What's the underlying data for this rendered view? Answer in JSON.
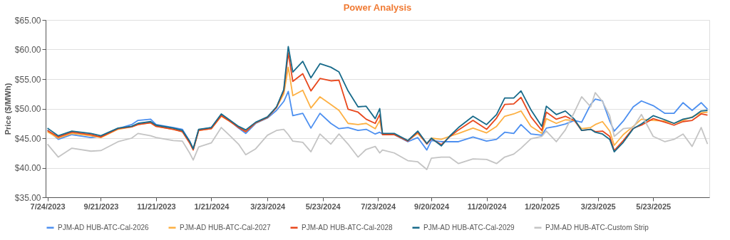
{
  "chart_data": {
    "type": "line",
    "title": "Power Analysis",
    "ylabel": "Price ($/MWh)",
    "x": [
      "2023-07-24",
      "2023-08-05",
      "2023-08-20",
      "2023-09-10",
      "2023-09-21",
      "2023-10-10",
      "2023-10-25",
      "2023-11-01",
      "2023-11-15",
      "2023-11-21",
      "2023-12-10",
      "2023-12-20",
      "2023-12-28",
      "2024-01-01",
      "2024-01-07",
      "2024-01-21",
      "2024-02-01",
      "2024-02-10",
      "2024-02-20",
      "2024-02-28",
      "2024-03-10",
      "2024-03-23",
      "2024-04-02",
      "2024-04-10",
      "2024-04-15",
      "2024-04-20",
      "2024-05-01",
      "2024-05-10",
      "2024-05-20",
      "2024-06-01",
      "2024-06-10",
      "2024-06-20",
      "2024-07-01",
      "2024-07-10",
      "2024-07-20",
      "2024-07-25",
      "2024-07-28",
      "2024-08-10",
      "2024-08-25",
      "2024-09-05",
      "2024-09-15",
      "2024-09-20",
      "2024-10-01",
      "2024-10-10",
      "2024-10-20",
      "2024-11-05",
      "2024-11-20",
      "2024-12-01",
      "2024-12-10",
      "2024-12-20",
      "2024-12-28",
      "2025-01-08",
      "2025-01-20",
      "2025-01-25",
      "2025-02-05",
      "2025-02-15",
      "2025-02-25",
      "2025-03-05",
      "2025-03-15",
      "2025-03-20",
      "2025-03-28",
      "2025-04-05",
      "2025-04-10",
      "2025-04-20",
      "2025-05-01",
      "2025-05-10",
      "2025-05-23",
      "2025-06-05",
      "2025-06-15",
      "2025-06-25",
      "2025-07-05",
      "2025-07-15",
      "2025-07-22"
    ],
    "series": [
      {
        "name": "PJM-AD HUB-ATC-Cal-2026",
        "color": "#4c8ff0",
        "values": [
          46.4,
          44.8,
          45.6,
          45.1,
          45.3,
          46.6,
          47.3,
          48.0,
          48.2,
          47.3,
          46.8,
          46.5,
          44.5,
          43.2,
          46.4,
          46.8,
          48.9,
          48.0,
          46.7,
          45.8,
          47.5,
          48.4,
          49.7,
          51.2,
          52.9,
          48.8,
          49.2,
          46.7,
          49.2,
          47.5,
          46.6,
          46.8,
          46.3,
          46.5,
          45.7,
          46.0,
          45.7,
          45.6,
          44.4,
          45.1,
          43.0,
          44.6,
          44.4,
          44.4,
          44.4,
          45.2,
          44.5,
          44.8,
          46.0,
          45.8,
          47.3,
          45.7,
          45.5,
          46.7,
          47.0,
          47.4,
          48.0,
          47.7,
          50.7,
          51.6,
          51.3,
          47.9,
          46.2,
          47.9,
          50.3,
          51.3,
          50.5,
          49.2,
          49.2,
          51.0,
          49.7,
          51.0,
          49.9
        ]
      },
      {
        "name": "PJM-AD HUB-ATC-Cal-2027",
        "color": "#fdb042",
        "values": [
          46.1,
          45.0,
          45.8,
          45.4,
          45.1,
          46.5,
          46.9,
          47.3,
          47.6,
          47.0,
          46.5,
          46.1,
          44.3,
          43.1,
          46.3,
          46.6,
          48.7,
          47.9,
          46.9,
          46.1,
          47.6,
          48.5,
          50.2,
          52.5,
          57.0,
          52.2,
          53.1,
          50.1,
          52.0,
          50.7,
          49.7,
          47.5,
          47.3,
          47.5,
          46.6,
          48.0,
          45.7,
          45.6,
          44.6,
          45.8,
          44.1,
          45.0,
          44.8,
          45.3,
          45.8,
          46.7,
          45.9,
          47.0,
          48.7,
          49.1,
          49.6,
          47.0,
          45.8,
          48.3,
          47.5,
          48.1,
          48.0,
          46.6,
          46.8,
          47.3,
          47.8,
          46.2,
          43.8,
          45.6,
          47.0,
          48.2,
          48.0,
          47.9,
          47.5,
          48.0,
          48.6,
          49.3,
          49.4
        ]
      },
      {
        "name": "PJM-AD HUB-ATC-Cal-2028",
        "color": "#e8471c",
        "values": [
          46.3,
          45.2,
          46.0,
          45.6,
          45.2,
          46.6,
          46.9,
          47.3,
          47.6,
          47.0,
          46.5,
          46.1,
          44.2,
          43.0,
          46.3,
          46.6,
          48.8,
          47.9,
          46.8,
          46.1,
          47.6,
          48.5,
          50.2,
          53.0,
          59.4,
          54.6,
          55.9,
          53.0,
          55.1,
          54.7,
          54.8,
          49.9,
          49.4,
          48.2,
          47.5,
          49.0,
          45.6,
          45.6,
          44.5,
          46.0,
          44.0,
          44.9,
          43.9,
          45.2,
          46.4,
          48.0,
          46.5,
          48.4,
          50.7,
          50.8,
          51.9,
          48.6,
          46.3,
          49.4,
          48.2,
          48.7,
          48.0,
          46.3,
          46.5,
          46.1,
          46.2,
          45.3,
          42.9,
          44.6,
          46.7,
          47.2,
          48.3,
          47.7,
          47.2,
          47.8,
          48.0,
          49.1,
          48.9
        ]
      },
      {
        "name": "PJM-AD HUB-ATC-Cal-2029",
        "color": "#176a8a",
        "values": [
          46.7,
          45.4,
          46.2,
          45.8,
          45.4,
          46.7,
          47.0,
          47.5,
          47.8,
          47.2,
          46.7,
          46.3,
          44.5,
          43.2,
          46.5,
          46.8,
          49.1,
          48.1,
          47.0,
          46.4,
          47.7,
          48.6,
          50.3,
          53.2,
          60.5,
          56.2,
          58.0,
          55.2,
          57.6,
          57.0,
          56.2,
          53.0,
          50.3,
          50.4,
          48.3,
          50.0,
          45.8,
          45.8,
          44.6,
          46.2,
          44.1,
          45.0,
          43.7,
          45.3,
          46.8,
          48.7,
          47.3,
          49.0,
          51.8,
          51.8,
          53.0,
          49.8,
          47.0,
          50.4,
          49.0,
          49.6,
          48.2,
          46.3,
          46.5,
          46.0,
          45.7,
          44.8,
          42.7,
          44.3,
          46.6,
          47.4,
          48.8,
          48.1,
          47.5,
          48.2,
          48.5,
          49.6,
          49.7
        ]
      },
      {
        "name": "PJM-AD HUB-ATC-Custom Strip",
        "color": "#c4c4c4",
        "values": [
          44.0,
          41.8,
          43.3,
          42.8,
          42.9,
          44.4,
          45.0,
          45.8,
          45.4,
          45.1,
          44.6,
          44.5,
          42.5,
          41.3,
          43.5,
          44.2,
          46.8,
          45.5,
          44.0,
          42.2,
          43.2,
          45.5,
          46.3,
          46.5,
          45.6,
          44.5,
          44.3,
          42.7,
          45.7,
          44.0,
          45.7,
          44.0,
          41.8,
          43.1,
          43.6,
          42.5,
          43.0,
          42.5,
          41.2,
          41.0,
          39.7,
          41.6,
          41.8,
          41.8,
          40.7,
          41.5,
          41.4,
          40.7,
          41.8,
          42.3,
          43.3,
          44.9,
          45.3,
          46.2,
          44.4,
          46.4,
          49.4,
          52.0,
          50.3,
          52.7,
          51.2,
          48.8,
          45.3,
          46.6,
          46.8,
          49.0,
          45.3,
          44.4,
          44.8,
          45.7,
          43.6,
          46.8,
          44.0
        ]
      }
    ],
    "xlim": [
      "2023-07-22",
      "2025-07-24"
    ],
    "xticks": [
      {
        "value": "2023-07-24",
        "label": "7/24/2023"
      },
      {
        "value": "2023-09-21",
        "label": "9/21/2023"
      },
      {
        "value": "2023-11-21",
        "label": "11/21/2023"
      },
      {
        "value": "2024-01-21",
        "label": "1/21/2024"
      },
      {
        "value": "2024-03-23",
        "label": "3/23/2024"
      },
      {
        "value": "2024-05-23",
        "label": "5/23/2024"
      },
      {
        "value": "2024-07-23",
        "label": "7/23/2024"
      },
      {
        "value": "2024-09-20",
        "label": "9/20/2024"
      },
      {
        "value": "2024-11-20",
        "label": "11/20/2024"
      },
      {
        "value": "2025-01-20",
        "label": "1/20/2025"
      },
      {
        "value": "2025-03-23",
        "label": "3/23/2025"
      },
      {
        "value": "2025-05-23",
        "label": "5/23/2025"
      }
    ],
    "ylim": [
      35,
      65
    ],
    "yticks": [
      {
        "value": 35,
        "label": "$35.00"
      },
      {
        "value": 40,
        "label": "$40.00"
      },
      {
        "value": 45,
        "label": "$45.00"
      },
      {
        "value": 50,
        "label": "$50.00"
      },
      {
        "value": 55,
        "label": "$55.00"
      },
      {
        "value": 60,
        "label": "$60.00"
      },
      {
        "value": 65,
        "label": "$65.00"
      }
    ],
    "grid": "y",
    "legend": "bottom",
    "marker": "none",
    "line_style": "solid"
  }
}
